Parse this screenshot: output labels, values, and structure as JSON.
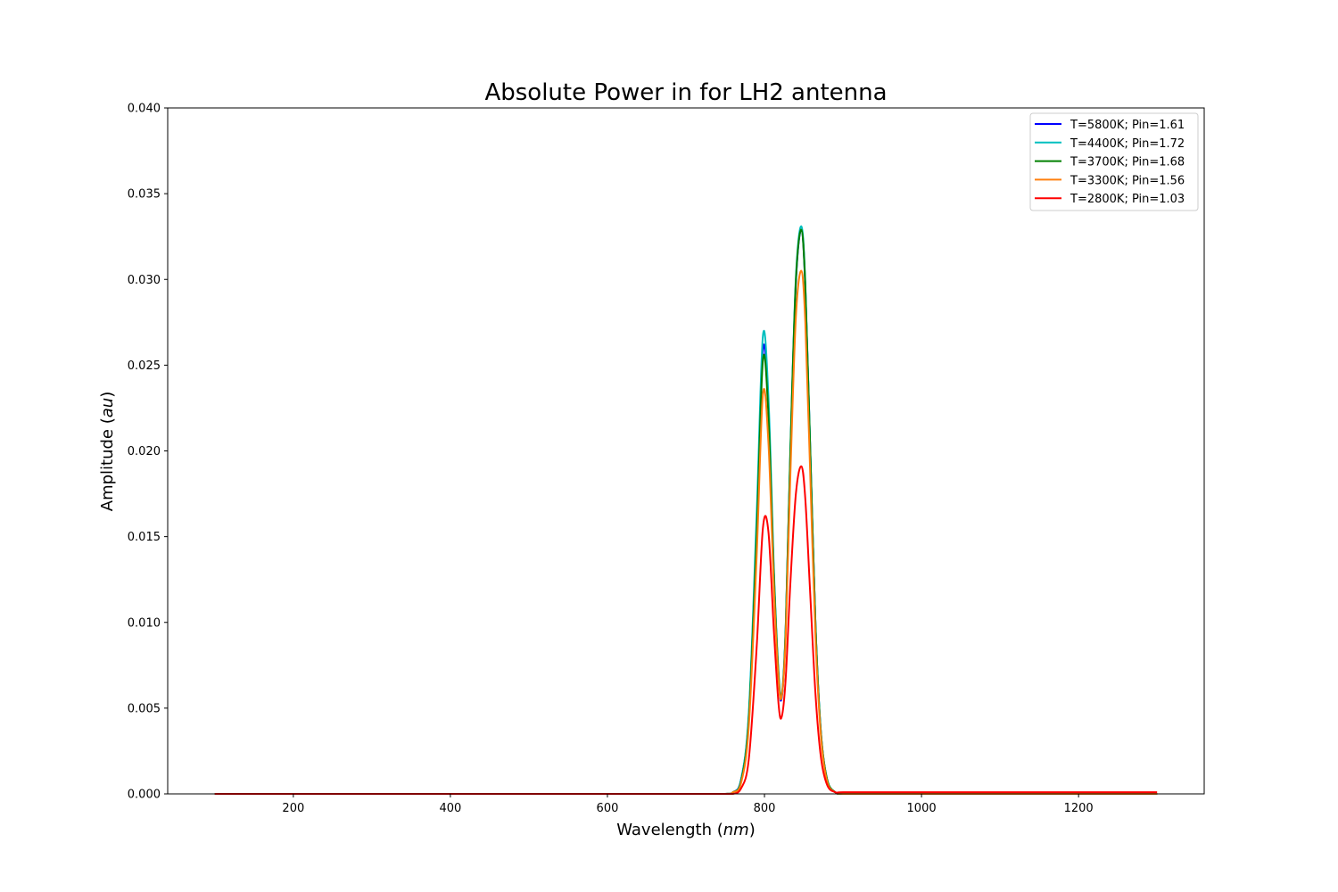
{
  "chart_data": {
    "type": "line",
    "title": "Absolute Power in for LH2 antenna",
    "xlabel": "Wavelength",
    "xlabel_unit": "nm",
    "ylabel": "Amplitude",
    "ylabel_unit": "au",
    "xlim": [
      40,
      1360
    ],
    "ylim": [
      0,
      0.04
    ],
    "xticks": [
      200,
      400,
      600,
      800,
      1000,
      1200
    ],
    "xtick_labels": [
      "200",
      "400",
      "600",
      "800",
      "1000",
      "1200"
    ],
    "yticks": [
      0,
      0.005,
      0.01,
      0.015,
      0.02,
      0.025,
      0.03,
      0.035,
      0.04
    ],
    "ytick_labels": [
      "0.000",
      "0.005",
      "0.010",
      "0.015",
      "0.020",
      "0.025",
      "0.030",
      "0.035",
      "0.040"
    ],
    "grid": false,
    "legend_position": "top-right",
    "x": [
      100,
      200,
      300,
      400,
      500,
      600,
      700,
      750,
      760,
      770,
      780,
      790,
      798,
      805,
      812,
      818,
      822,
      827,
      833,
      840,
      847,
      852,
      858,
      865,
      872,
      880,
      890,
      900,
      950,
      1000,
      1100,
      1200,
      1300
    ],
    "series": [
      {
        "name": "T=5800K; Pin=1.61",
        "color": "#0000ff",
        "values": [
          0,
          0,
          0,
          0,
          0,
          0,
          0,
          0,
          0.0001,
          0.0008,
          0.0045,
          0.0155,
          0.0259,
          0.0225,
          0.0128,
          0.0068,
          0.0056,
          0.0095,
          0.0198,
          0.0298,
          0.0329,
          0.0296,
          0.0205,
          0.0098,
          0.0035,
          0.0008,
          0.0001,
          0,
          0,
          0,
          0,
          0,
          0
        ]
      },
      {
        "name": "T=4400K; Pin=1.72",
        "color": "#00bfbf",
        "values": [
          0,
          0,
          0,
          0,
          0,
          0,
          0,
          0,
          0.0001,
          0.0008,
          0.0047,
          0.0162,
          0.0267,
          0.0232,
          0.0131,
          0.007,
          0.0058,
          0.0097,
          0.0201,
          0.0301,
          0.0331,
          0.0298,
          0.0206,
          0.0098,
          0.0035,
          0.0008,
          0.0001,
          0,
          0,
          0,
          0,
          0,
          0
        ]
      },
      {
        "name": "T=3700K; Pin=1.68",
        "color": "#008000",
        "values": [
          0,
          0,
          0,
          0,
          0,
          0,
          0,
          0,
          0.0001,
          0.0007,
          0.0043,
          0.0151,
          0.0253,
          0.0221,
          0.0127,
          0.0069,
          0.0057,
          0.0096,
          0.02,
          0.0299,
          0.0329,
          0.0296,
          0.0205,
          0.0098,
          0.0035,
          0.0008,
          0.0001,
          0,
          0,
          0,
          0,
          0,
          0
        ]
      },
      {
        "name": "T=3300K; Pin=1.56",
        "color": "#ff7f0e",
        "values": [
          0,
          0,
          0,
          0,
          0,
          0,
          0,
          0,
          0.0001,
          0.0006,
          0.0039,
          0.0138,
          0.0233,
          0.0205,
          0.012,
          0.0066,
          0.0057,
          0.0091,
          0.0186,
          0.0278,
          0.0305,
          0.0275,
          0.019,
          0.0091,
          0.0033,
          0.0007,
          0.0001,
          0,
          0,
          0,
          0,
          0,
          0
        ]
      },
      {
        "name": "T=2800K; Pin=1.03",
        "color": "#ff0000",
        "values": [
          0,
          0,
          0,
          0,
          0,
          0,
          0,
          0,
          0,
          0.0003,
          0.002,
          0.0085,
          0.0155,
          0.0153,
          0.0095,
          0.0052,
          0.0045,
          0.0067,
          0.0123,
          0.0175,
          0.0191,
          0.0172,
          0.0119,
          0.0058,
          0.0021,
          0.0005,
          0.0001,
          0.0001,
          0.0001,
          0.0001,
          0.0001,
          0.0001,
          0.0001
        ]
      }
    ]
  }
}
